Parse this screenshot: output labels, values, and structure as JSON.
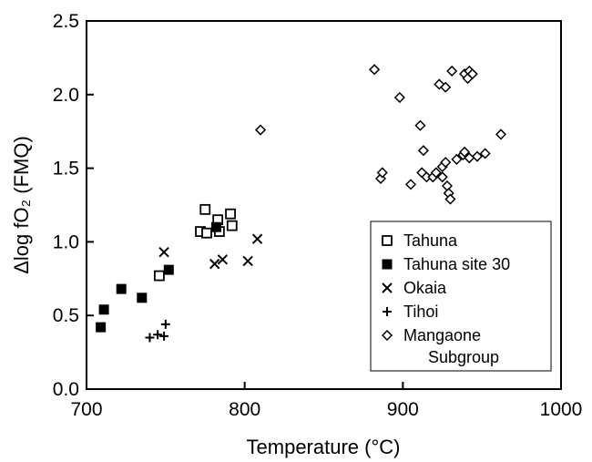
{
  "chart_data": {
    "type": "scatter",
    "xlabel": "Temperature (°C)",
    "ylabel": "Δlog fO₂ (FMQ)",
    "xlim": [
      700,
      1000
    ],
    "ylim": [
      0.0,
      2.5
    ],
    "xticks": [
      "700",
      "800",
      "900",
      "1000"
    ],
    "yticks": [
      "0.0",
      "0.5",
      "1.0",
      "1.5",
      "2.0",
      "2.5"
    ],
    "grid": false,
    "legend_position": "lower-right",
    "series": [
      {
        "name": "Tahuna",
        "marker": "open-square",
        "points": [
          [
            746,
            0.77
          ],
          [
            772,
            1.07
          ],
          [
            775,
            1.22
          ],
          [
            776,
            1.06
          ],
          [
            783,
            1.15
          ],
          [
            784,
            1.07
          ],
          [
            791,
            1.19
          ],
          [
            792,
            1.11
          ]
        ]
      },
      {
        "name": "Tahuna site 30",
        "marker": "filled-square",
        "points": [
          [
            709,
            0.42
          ],
          [
            711,
            0.54
          ],
          [
            722,
            0.68
          ],
          [
            735,
            0.62
          ],
          [
            752,
            0.81
          ],
          [
            782,
            1.1
          ]
        ]
      },
      {
        "name": "Okaia",
        "marker": "x",
        "points": [
          [
            749,
            0.93
          ],
          [
            781,
            0.85
          ],
          [
            786,
            0.88
          ],
          [
            802,
            0.87
          ],
          [
            808,
            1.02
          ]
        ]
      },
      {
        "name": "Tihoi",
        "marker": "plus",
        "points": [
          [
            740,
            0.35
          ],
          [
            745,
            0.37
          ],
          [
            749,
            0.36
          ],
          [
            750,
            0.44
          ]
        ]
      },
      {
        "name": "Mangaone\nSubgroup",
        "legend_lines": [
          "Mangaone",
          "Subgroup"
        ],
        "marker": "open-diamond",
        "points": [
          [
            810,
            1.76
          ],
          [
            882,
            2.17
          ],
          [
            886,
            1.43
          ],
          [
            887,
            1.47
          ],
          [
            898,
            1.98
          ],
          [
            905,
            1.39
          ],
          [
            911,
            1.79
          ],
          [
            912,
            1.47
          ],
          [
            913,
            1.62
          ],
          [
            915,
            1.44
          ],
          [
            919,
            1.44
          ],
          [
            921,
            1.47
          ],
          [
            923,
            2.07
          ],
          [
            925,
            1.44
          ],
          [
            925,
            1.51
          ],
          [
            927,
            1.54
          ],
          [
            927,
            2.05
          ],
          [
            928,
            1.38
          ],
          [
            929,
            1.33
          ],
          [
            930,
            1.29
          ],
          [
            931,
            2.16
          ],
          [
            934,
            1.56
          ],
          [
            938,
            1.59
          ],
          [
            939,
            1.61
          ],
          [
            939,
            2.14
          ],
          [
            941,
            2.11
          ],
          [
            942,
            1.57
          ],
          [
            942,
            2.16
          ],
          [
            944,
            2.14
          ],
          [
            947,
            1.58
          ],
          [
            952,
            1.6
          ],
          [
            962,
            1.73
          ]
        ]
      }
    ]
  }
}
